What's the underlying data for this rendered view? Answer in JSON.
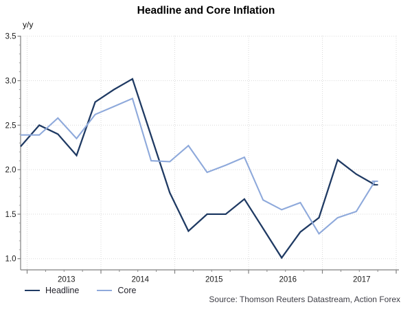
{
  "title": "Headline and Core Inflation",
  "y_axis_label": "y/y",
  "source": "Source: Thomson Reuters Datastream, Action Forex",
  "colors": {
    "headline": "#1f3a63",
    "core": "#8ea9db",
    "axis": "#7f7f7f",
    "gridline": "#d9d9d9",
    "tick_text": "#1a1a1a"
  },
  "legend": [
    {
      "label": "Headline",
      "color": "#1f3a63"
    },
    {
      "label": "Core",
      "color": "#8ea9db"
    }
  ],
  "chart_data": {
    "type": "line",
    "title": "Headline and Core Inflation",
    "ylabel": "y/y",
    "ylim": [
      1.0,
      3.5
    ],
    "grid": true,
    "legend_position": "bottom-left",
    "x": [
      "2012 Q4",
      "2013 Q1",
      "2013 Q2",
      "2013 Q3",
      "2013 Q4",
      "2014 Q1",
      "2014 Q2",
      "2014 Q3",
      "2014 Q4",
      "2015 Q1",
      "2015 Q2",
      "2015 Q3",
      "2015 Q4",
      "2016 Q1",
      "2016 Q2",
      "2016 Q3",
      "2016 Q4",
      "2017 Q1",
      "2017 Q2",
      "2017 Q3"
    ],
    "x_tick_years": [
      "2013",
      "2014",
      "2015",
      "2016",
      "2017"
    ],
    "y_ticks": [
      "1.0",
      "1.5",
      "2.0",
      "2.5",
      "3.0",
      "3.5"
    ],
    "series": [
      {
        "name": "Headline",
        "color": "#1f3a63",
        "values": [
          2.26,
          2.5,
          2.4,
          2.16,
          2.76,
          2.9,
          3.02,
          2.38,
          1.74,
          1.31,
          1.5,
          1.5,
          1.67,
          1.34,
          1.01,
          1.3,
          1.46,
          2.11,
          1.95,
          1.83
        ]
      },
      {
        "name": "Core",
        "color": "#8ea9db",
        "values": [
          2.39,
          2.39,
          2.58,
          2.35,
          2.62,
          2.71,
          2.8,
          2.1,
          2.09,
          2.27,
          1.97,
          2.05,
          2.14,
          1.66,
          1.55,
          1.63,
          1.28,
          1.46,
          1.53,
          1.87
        ]
      }
    ]
  }
}
